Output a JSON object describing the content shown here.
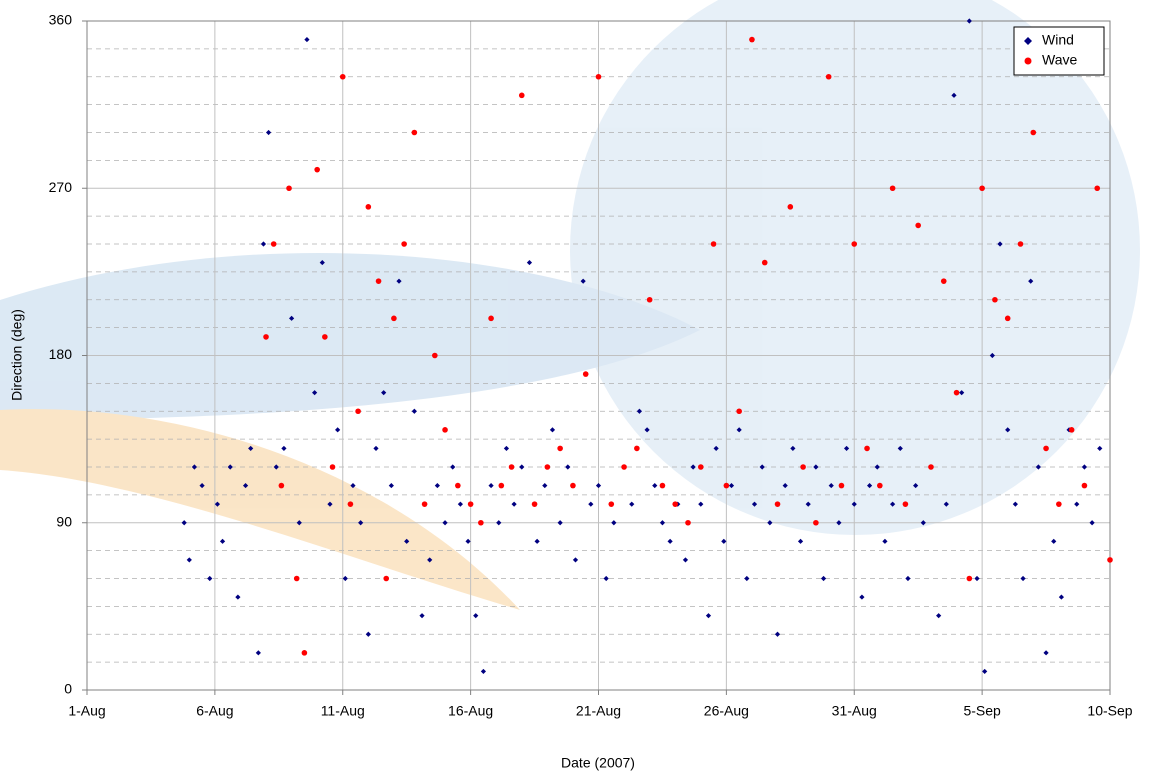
{
  "chart_data": {
    "type": "scatter",
    "x_label": "Date (2007)",
    "y_label": "Direction (deg)",
    "xlim": [
      1,
      41
    ],
    "xticks": [
      {
        "value": 1,
        "label": "1-Aug"
      },
      {
        "value": 6,
        "label": "6-Aug"
      },
      {
        "value": 11,
        "label": "11-Aug"
      },
      {
        "value": 16,
        "label": "16-Aug"
      },
      {
        "value": 21,
        "label": "21-Aug"
      },
      {
        "value": 26,
        "label": "26-Aug"
      },
      {
        "value": 31,
        "label": "31-Aug"
      },
      {
        "value": 36,
        "label": "5-Sep"
      },
      {
        "value": 41,
        "label": "10-Sep"
      }
    ],
    "ylim": [
      0,
      360
    ],
    "yticks": [
      0,
      90,
      180,
      270,
      360
    ],
    "minor_yticks": [
      15,
      30,
      45,
      60,
      75,
      105,
      120,
      135,
      150,
      165,
      195,
      210,
      225,
      240,
      255,
      285,
      300,
      315,
      330,
      345
    ],
    "grid": true,
    "legend": "top-right",
    "series": [
      {
        "name": "Wind",
        "color": "#000080",
        "marker": "diamond",
        "x": [
          4.8,
          5.0,
          5.2,
          5.5,
          5.8,
          6.1,
          6.3,
          6.6,
          6.9,
          7.2,
          7.4,
          7.7,
          7.9,
          8.1,
          8.4,
          8.7,
          9.0,
          9.3,
          9.6,
          9.9,
          10.2,
          10.5,
          10.8,
          11.1,
          11.4,
          11.7,
          12.0,
          12.3,
          12.6,
          12.9,
          13.2,
          13.5,
          13.8,
          14.1,
          14.4,
          14.7,
          15.0,
          15.3,
          15.6,
          15.9,
          16.2,
          16.5,
          16.8,
          17.1,
          17.4,
          17.7,
          18.0,
          18.3,
          18.6,
          18.9,
          19.2,
          19.5,
          19.8,
          20.1,
          20.4,
          20.7,
          21.0,
          21.3,
          21.6,
          22.0,
          22.3,
          22.6,
          22.9,
          23.2,
          23.5,
          23.8,
          24.1,
          24.4,
          24.7,
          25.0,
          25.3,
          25.6,
          25.9,
          26.2,
          26.5,
          26.8,
          27.1,
          27.4,
          27.7,
          28.0,
          28.3,
          28.6,
          28.9,
          29.2,
          29.5,
          29.8,
          30.1,
          30.4,
          30.7,
          31.0,
          31.3,
          31.6,
          31.9,
          32.2,
          32.5,
          32.8,
          33.1,
          33.4,
          33.7,
          34.0,
          34.3,
          34.6,
          34.9,
          35.2,
          35.5,
          35.8,
          36.1,
          36.4,
          36.7,
          37.0,
          37.3,
          37.6,
          37.9,
          38.2,
          38.5,
          38.8,
          39.1,
          39.4,
          39.7,
          40.0,
          40.3,
          40.6
        ],
        "values": [
          90,
          70,
          120,
          110,
          60,
          100,
          80,
          120,
          50,
          110,
          130,
          20,
          240,
          300,
          120,
          130,
          200,
          90,
          350,
          160,
          230,
          100,
          140,
          60,
          110,
          90,
          30,
          130,
          160,
          110,
          220,
          80,
          150,
          40,
          70,
          110,
          90,
          120,
          100,
          80,
          40,
          10,
          110,
          90,
          130,
          100,
          120,
          230,
          80,
          110,
          140,
          90,
          120,
          70,
          220,
          100,
          110,
          60,
          90,
          120,
          100,
          150,
          140,
          110,
          90,
          80,
          100,
          70,
          120,
          100,
          40,
          130,
          80,
          110,
          140,
          60,
          100,
          120,
          90,
          30,
          110,
          130,
          80,
          100,
          120,
          60,
          110,
          90,
          130,
          100,
          50,
          110,
          120,
          80,
          100,
          130,
          60,
          110,
          90,
          120,
          40,
          100,
          320,
          160,
          360,
          60,
          10,
          180,
          240,
          140,
          100,
          60,
          220,
          120,
          20,
          80,
          50,
          140,
          100,
          120,
          90,
          130
        ]
      },
      {
        "name": "Wave",
        "color": "#ff0000",
        "marker": "circle",
        "x": [
          8.0,
          8.3,
          8.6,
          8.9,
          9.2,
          9.5,
          10.0,
          10.3,
          10.6,
          11.0,
          11.3,
          11.6,
          12.0,
          12.4,
          12.7,
          13.0,
          13.4,
          13.8,
          14.2,
          14.6,
          15.0,
          15.5,
          16.0,
          16.4,
          16.8,
          17.2,
          17.6,
          18.0,
          18.5,
          19.0,
          19.5,
          20.0,
          20.5,
          21.0,
          21.5,
          22.0,
          22.5,
          23.0,
          23.5,
          24.0,
          24.5,
          25.0,
          25.5,
          26.0,
          26.5,
          27.0,
          27.5,
          28.0,
          28.5,
          29.0,
          29.5,
          30.0,
          30.5,
          31.0,
          31.5,
          32.0,
          32.5,
          33.0,
          33.5,
          34.0,
          34.5,
          35.0,
          35.5,
          36.0,
          36.5,
          37.0,
          37.5,
          38.0,
          38.5,
          39.0,
          39.5,
          40.0,
          40.5,
          41.0
        ],
        "values": [
          190,
          240,
          110,
          270,
          60,
          20,
          280,
          190,
          120,
          330,
          100,
          150,
          260,
          220,
          60,
          200,
          240,
          300,
          100,
          180,
          140,
          110,
          100,
          90,
          200,
          110,
          120,
          320,
          100,
          120,
          130,
          110,
          170,
          330,
          100,
          120,
          130,
          210,
          110,
          100,
          90,
          120,
          240,
          110,
          150,
          350,
          230,
          100,
          260,
          120,
          90,
          330,
          110,
          240,
          130,
          110,
          270,
          100,
          250,
          120,
          220,
          160,
          60,
          270,
          210,
          200,
          240,
          300,
          130,
          100,
          140,
          110,
          270,
          70
        ]
      }
    ]
  }
}
